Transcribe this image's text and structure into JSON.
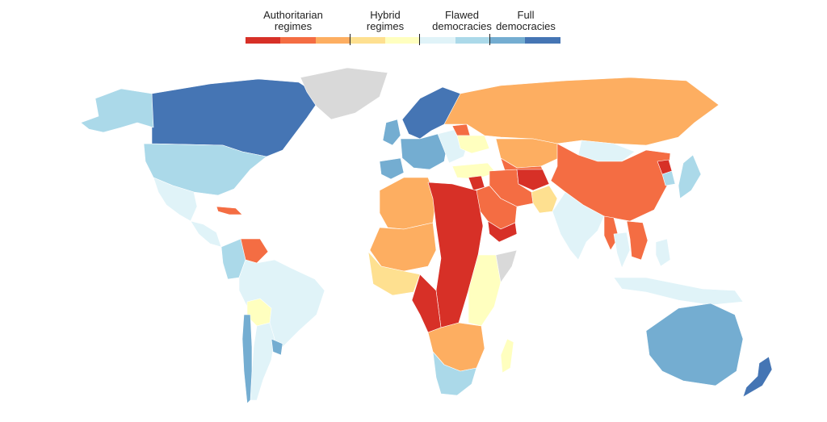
{
  "legend": {
    "groups": [
      {
        "label": "Authoritarian\nregimes"
      },
      {
        "label": "Hybrid\nregimes"
      },
      {
        "label": "Flawed\ndemocracies"
      },
      {
        "label": "Full\ndemocracies"
      }
    ],
    "scale_colors": [
      "#d73027",
      "#f46d43",
      "#fdae61",
      "#fee090",
      "#ffffbf",
      "#e0f3f8",
      "#abd9e9",
      "#74add1",
      "#4575b4"
    ],
    "no_data_color": "#d9d9d9"
  },
  "map": {
    "projection": "world",
    "regions": [
      {
        "id": "canada",
        "cls": 8
      },
      {
        "id": "alaska",
        "cls": 6
      },
      {
        "id": "usa",
        "cls": 6
      },
      {
        "id": "greenland",
        "cls": -1
      },
      {
        "id": "mexico",
        "cls": 5
      },
      {
        "id": "central-america",
        "cls": 5
      },
      {
        "id": "cuba",
        "cls": 1
      },
      {
        "id": "venezuela",
        "cls": 1
      },
      {
        "id": "colombia",
        "cls": 6
      },
      {
        "id": "brazil",
        "cls": 5
      },
      {
        "id": "bolivia",
        "cls": 4
      },
      {
        "id": "argentina",
        "cls": 5
      },
      {
        "id": "chile",
        "cls": 7
      },
      {
        "id": "uruguay",
        "cls": 7
      },
      {
        "id": "scandinavia",
        "cls": 8
      },
      {
        "id": "uk",
        "cls": 7
      },
      {
        "id": "iberia",
        "cls": 7
      },
      {
        "id": "western-europe",
        "cls": 7
      },
      {
        "id": "eastern-europe",
        "cls": 5
      },
      {
        "id": "belarus",
        "cls": 1
      },
      {
        "id": "ukraine",
        "cls": 4
      },
      {
        "id": "turkey",
        "cls": 4
      },
      {
        "id": "russia",
        "cls": 2
      },
      {
        "id": "kazakhstan",
        "cls": 2
      },
      {
        "id": "central-asia",
        "cls": 1
      },
      {
        "id": "mongolia",
        "cls": 5
      },
      {
        "id": "china",
        "cls": 1
      },
      {
        "id": "north-korea",
        "cls": 0
      },
      {
        "id": "japan",
        "cls": 6
      },
      {
        "id": "korea",
        "cls": 6
      },
      {
        "id": "india",
        "cls": 5
      },
      {
        "id": "pakistan",
        "cls": 3
      },
      {
        "id": "iran",
        "cls": 1
      },
      {
        "id": "afghanistan",
        "cls": 0
      },
      {
        "id": "arabia",
        "cls": 1
      },
      {
        "id": "yemen",
        "cls": 0
      },
      {
        "id": "syria",
        "cls": 0
      },
      {
        "id": "myanmar",
        "cls": 1
      },
      {
        "id": "indochina",
        "cls": 1
      },
      {
        "id": "thailand",
        "cls": 5
      },
      {
        "id": "indonesia",
        "cls": 5
      },
      {
        "id": "philippines",
        "cls": 5
      },
      {
        "id": "australia",
        "cls": 7
      },
      {
        "id": "new-zealand",
        "cls": 8
      },
      {
        "id": "maghreb",
        "cls": 2
      },
      {
        "id": "libya-sudan-belt",
        "cls": 0
      },
      {
        "id": "sahel",
        "cls": 2
      },
      {
        "id": "west-africa",
        "cls": 3
      },
      {
        "id": "central-africa",
        "cls": 0
      },
      {
        "id": "east-africa",
        "cls": 4
      },
      {
        "id": "horn",
        "cls": -1
      },
      {
        "id": "southern-africa",
        "cls": 2
      },
      {
        "id": "south-africa",
        "cls": 6
      },
      {
        "id": "madagascar",
        "cls": 4
      }
    ]
  }
}
